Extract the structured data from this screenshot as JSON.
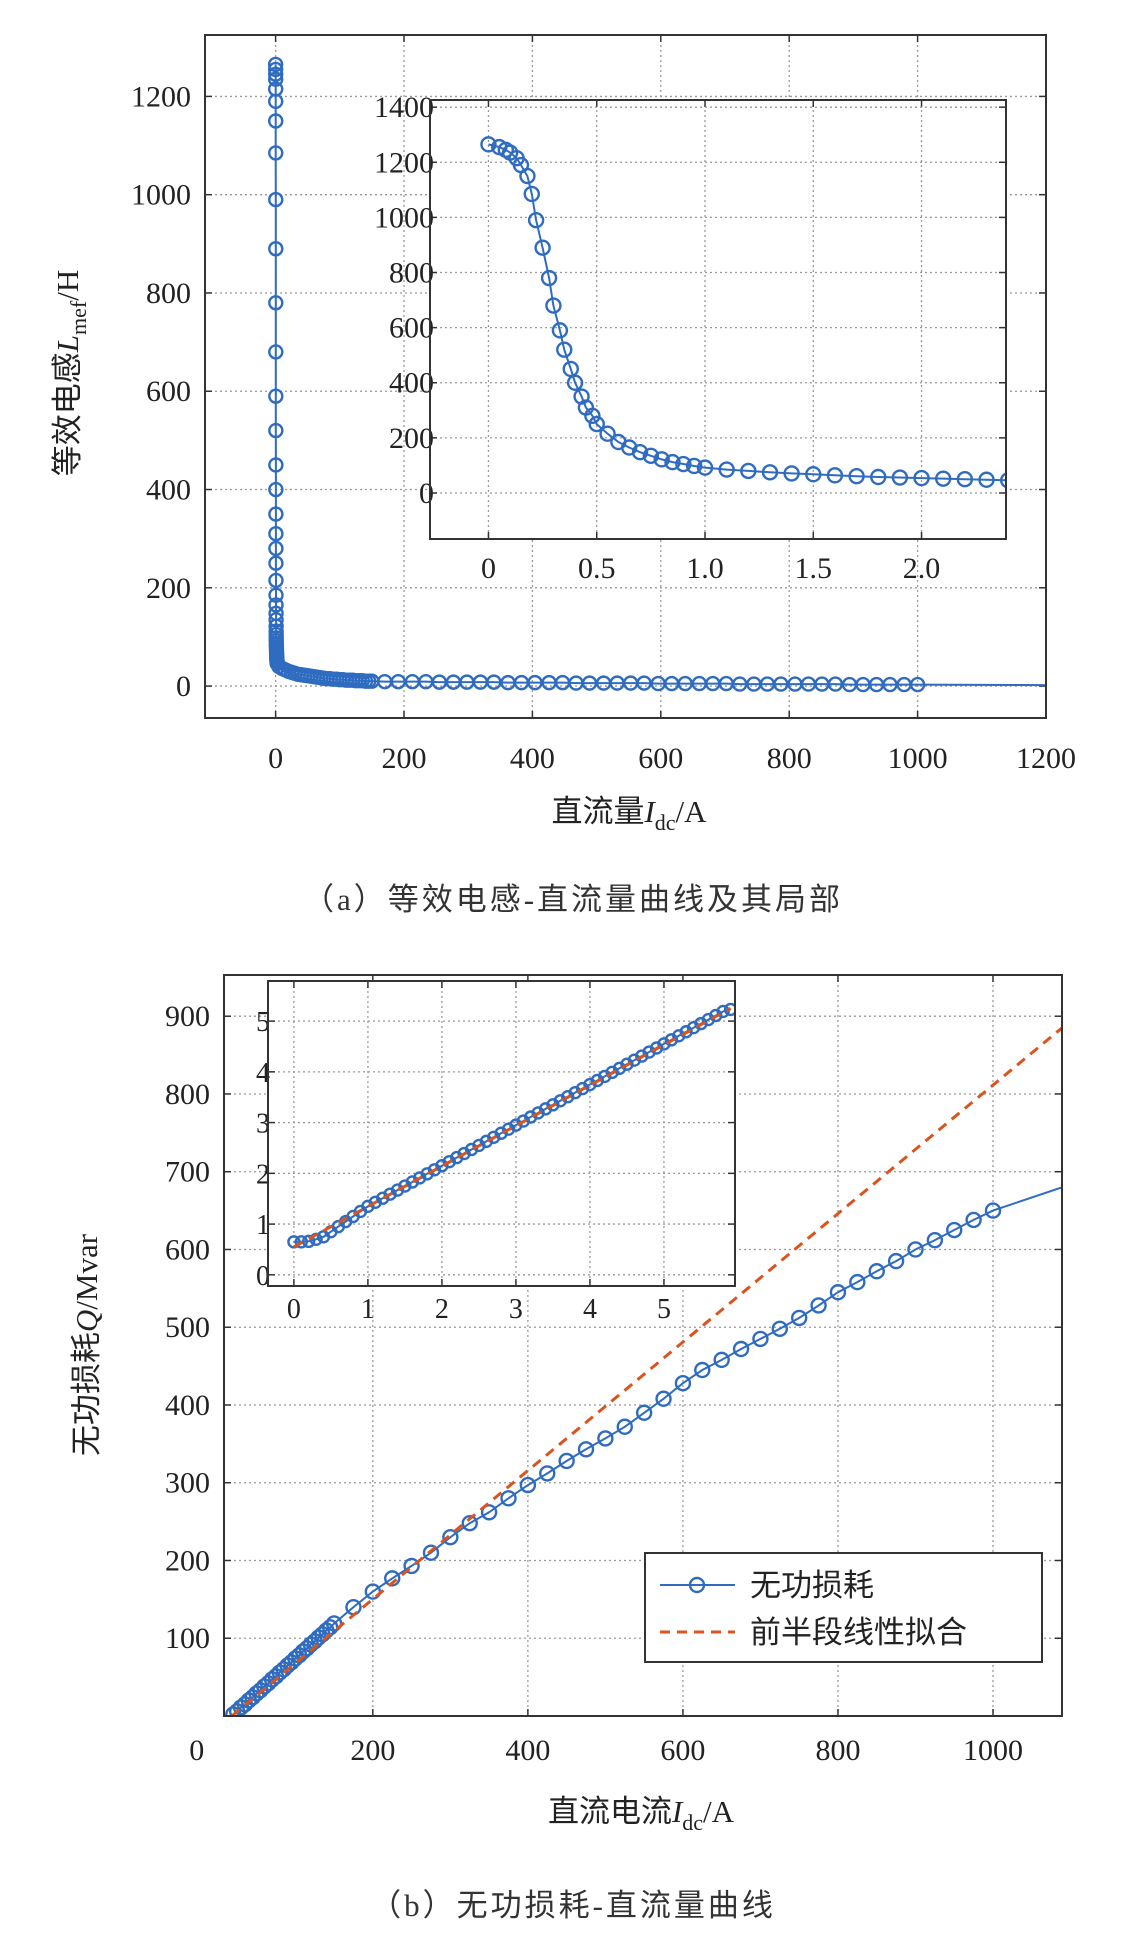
{
  "colors": {
    "series": "#2f6cc0",
    "fit": "#d9541e",
    "grid": "#9a9a9a",
    "frame": "#333333"
  },
  "chart_data": [
    {
      "type": "line",
      "panel": "a",
      "caption": "（a）等效电感-直流量曲线及其局部",
      "xlabel": {
        "main": "直流量",
        "var": "I",
        "sub": "dc",
        "unit": "/A"
      },
      "ylabel": {
        "main": "等效电感",
        "var": "L",
        "sub": "mef",
        "unit": "/H"
      },
      "xlim": [
        -110,
        1200
      ],
      "ylim": [
        -65,
        1325
      ],
      "xticks": [
        0,
        200,
        400,
        600,
        800,
        1000,
        1200
      ],
      "xtick_labels": [
        "0",
        "200",
        "400",
        "600",
        "800",
        "1000",
        "1200"
      ],
      "yticks": [
        0,
        200,
        400,
        600,
        800,
        1000,
        1200
      ],
      "ytick_labels": [
        "0",
        "200",
        "400",
        "600",
        "800",
        "1000",
        "1200"
      ],
      "grid": true,
      "marker": "circle-open",
      "series": [
        {
          "x": [
            0,
            0.05,
            0.08,
            0.1,
            0.13,
            0.15,
            0.18,
            0.2,
            0.22,
            0.25,
            0.28,
            0.3,
            0.33,
            0.35,
            0.38,
            0.4,
            0.43,
            0.45,
            0.48,
            0.5,
            0.55,
            0.6,
            0.65,
            0.7,
            0.75,
            0.8,
            0.85,
            0.9,
            0.95,
            1.0,
            1.1,
            1.2,
            1.3,
            1.4,
            1.5,
            1.6,
            1.7,
            1.8,
            1.9,
            2.0,
            2.1,
            2.2,
            2.3,
            2.4,
            5,
            10,
            15,
            20,
            25,
            30,
            35,
            40,
            45,
            50,
            55,
            60,
            65,
            70,
            75,
            80,
            85,
            90,
            95,
            100,
            105,
            110,
            115,
            120,
            125,
            130,
            135,
            140,
            145,
            150,
            170,
            191,
            213,
            234,
            255,
            277,
            298,
            319,
            340,
            362,
            383,
            404,
            426,
            447,
            468,
            489,
            511,
            532,
            553,
            574,
            596,
            617,
            638,
            660,
            681,
            702,
            723,
            745,
            766,
            787,
            809,
            830,
            851,
            872,
            894,
            915,
            936,
            957,
            979,
            1000
          ],
          "y": [
            1265,
            1255,
            1245,
            1235,
            1215,
            1190,
            1150,
            1085,
            990,
            890,
            780,
            680,
            590,
            520,
            450,
            400,
            350,
            310,
            280,
            250,
            215,
            185,
            165,
            148,
            135,
            122,
            112,
            105,
            98,
            92,
            85,
            80,
            75,
            71,
            68,
            64,
            61,
            58,
            56,
            54,
            52,
            50,
            48,
            46,
            40,
            36,
            33,
            30,
            28,
            26,
            24,
            23,
            22,
            21,
            20,
            19,
            18,
            17,
            16,
            15,
            15,
            14,
            14,
            13,
            13,
            12,
            12,
            12,
            11,
            11,
            11,
            10,
            10,
            10,
            9,
            9,
            9,
            9,
            8,
            8,
            8,
            8,
            8,
            7,
            7,
            7,
            7,
            7,
            6,
            6,
            6,
            6,
            6,
            6,
            5,
            5,
            5,
            5,
            5,
            5,
            4,
            4,
            4,
            4,
            4,
            4,
            4,
            4,
            3,
            3,
            3,
            3,
            3,
            3
          ],
          "line_extension": {
            "x": 1200,
            "y": 2
          }
        }
      ],
      "inset": {
        "xlim": [
          -0.27,
          2.39
        ],
        "ylim": [
          -167,
          1426
        ],
        "xticks": [
          0,
          0.5,
          1.0,
          1.5,
          2.0
        ],
        "xtick_labels": [
          "0",
          "0.5",
          "1.0",
          "1.5",
          "2.0"
        ],
        "yticks": [
          0,
          200,
          400,
          600,
          800,
          1000,
          1200,
          1400
        ],
        "ytick_labels": [
          "0",
          "200",
          "400",
          "600",
          "800",
          "1000",
          "1200",
          "1400"
        ],
        "grid": true,
        "series_points": 44
      }
    },
    {
      "type": "line",
      "panel": "b",
      "caption": "（b）无功损耗-直流量曲线",
      "xlabel": {
        "main": "直流电流",
        "var": "I",
        "sub": "dc",
        "unit": "/A"
      },
      "ylabel": {
        "main": "无功损耗",
        "var": "Q",
        "sub": "",
        "unit": "/Mvar"
      },
      "xlim": [
        8,
        1089
      ],
      "ylim": [
        0,
        953
      ],
      "xticks": [
        0,
        200,
        400,
        600,
        800,
        1000
      ],
      "xtick_labels": [
        "0",
        "200",
        "400",
        "600",
        "800",
        "1000"
      ],
      "yticks": [
        100,
        200,
        300,
        400,
        500,
        600,
        700,
        800,
        900
      ],
      "ytick_labels": [
        "100",
        "200",
        "300",
        "400",
        "500",
        "600",
        "700",
        "800",
        "900"
      ],
      "grid": true,
      "legend": {
        "placement": "lower-right",
        "entries": [
          "无功损耗",
          "前半段线性拟合"
        ]
      },
      "series": [
        {
          "name": "无功损耗",
          "style": "line-circle",
          "x": [
            20,
            25,
            30,
            35,
            40,
            45,
            50,
            55,
            60,
            65,
            70,
            75,
            80,
            85,
            90,
            95,
            100,
            105,
            110,
            115,
            120,
            125,
            130,
            135,
            140,
            145,
            150,
            175,
            200,
            225,
            250,
            275,
            300,
            325,
            350,
            375,
            400,
            425,
            450,
            475,
            500,
            525,
            550,
            575,
            600,
            625,
            650,
            675,
            700,
            725,
            750,
            775,
            800,
            825,
            850,
            875,
            900,
            925,
            950,
            975,
            1000
          ],
          "y": [
            2,
            6,
            11,
            15,
            20,
            24,
            29,
            33,
            38,
            42,
            47,
            51,
            56,
            60,
            65,
            69,
            74,
            78,
            83,
            87,
            92,
            96,
            101,
            105,
            110,
            114,
            119,
            140,
            160,
            177,
            193,
            210,
            230,
            248,
            262,
            280,
            297,
            312,
            328,
            343,
            357,
            372,
            390,
            408,
            428,
            445,
            458,
            472,
            485,
            498,
            512,
            528,
            545,
            558,
            572,
            585,
            600,
            612,
            625,
            638,
            650
          ],
          "line_extension": {
            "x": 1089,
            "y": 680
          }
        },
        {
          "name": "前半段线性拟合",
          "style": "dashed",
          "x": [
            18,
            1089
          ],
          "y": [
            0,
            885
          ]
        }
      ],
      "inset": {
        "xlim": [
          -0.35,
          5.96
        ],
        "ylim": [
          -0.22,
          5.79
        ],
        "xticks": [
          0,
          1,
          2,
          3,
          4,
          5
        ],
        "xtick_labels": [
          "0",
          "1",
          "2",
          "3",
          "4",
          "5"
        ],
        "yticks": [
          0,
          1,
          2,
          3,
          4,
          5
        ],
        "ytick_labels": [
          "0",
          "1",
          "2",
          "3",
          "4",
          "5"
        ],
        "grid": true,
        "series": [
          {
            "style": "line-circle",
            "x": [
              0,
              0.1,
              0.2,
              0.3,
              0.4,
              0.5,
              0.6,
              0.7,
              0.8,
              0.9,
              1.0,
              1.1,
              1.2,
              1.3,
              1.4,
              1.5,
              1.6,
              1.7,
              1.8,
              1.9,
              2.0,
              2.1,
              2.2,
              2.3,
              2.4,
              2.5,
              2.6,
              2.7,
              2.8,
              2.9,
              3.0,
              3.1,
              3.2,
              3.3,
              3.4,
              3.5,
              3.6,
              3.7,
              3.8,
              3.9,
              4.0,
              4.1,
              4.2,
              4.3,
              4.4,
              4.5,
              4.6,
              4.7,
              4.8,
              4.9,
              5.0,
              5.1,
              5.2,
              5.3,
              5.4,
              5.5,
              5.6,
              5.7,
              5.8,
              5.9
            ],
            "y": [
              0.65,
              0.65,
              0.66,
              0.7,
              0.75,
              0.85,
              0.95,
              1.05,
              1.15,
              1.25,
              1.35,
              1.43,
              1.51,
              1.59,
              1.67,
              1.75,
              1.83,
              1.91,
              1.99,
              2.07,
              2.15,
              2.23,
              2.31,
              2.39,
              2.47,
              2.55,
              2.63,
              2.71,
              2.79,
              2.87,
              2.95,
              3.03,
              3.11,
              3.19,
              3.27,
              3.35,
              3.43,
              3.51,
              3.59,
              3.67,
              3.75,
              3.83,
              3.91,
              3.99,
              4.07,
              4.15,
              4.23,
              4.31,
              4.39,
              4.47,
              4.55,
              4.63,
              4.71,
              4.79,
              4.87,
              4.95,
              5.03,
              5.11,
              5.19,
              5.23
            ]
          },
          {
            "style": "dashed",
            "x": [
              0,
              5.9
            ],
            "y": [
              0.55,
              5.25
            ]
          }
        ]
      }
    }
  ]
}
